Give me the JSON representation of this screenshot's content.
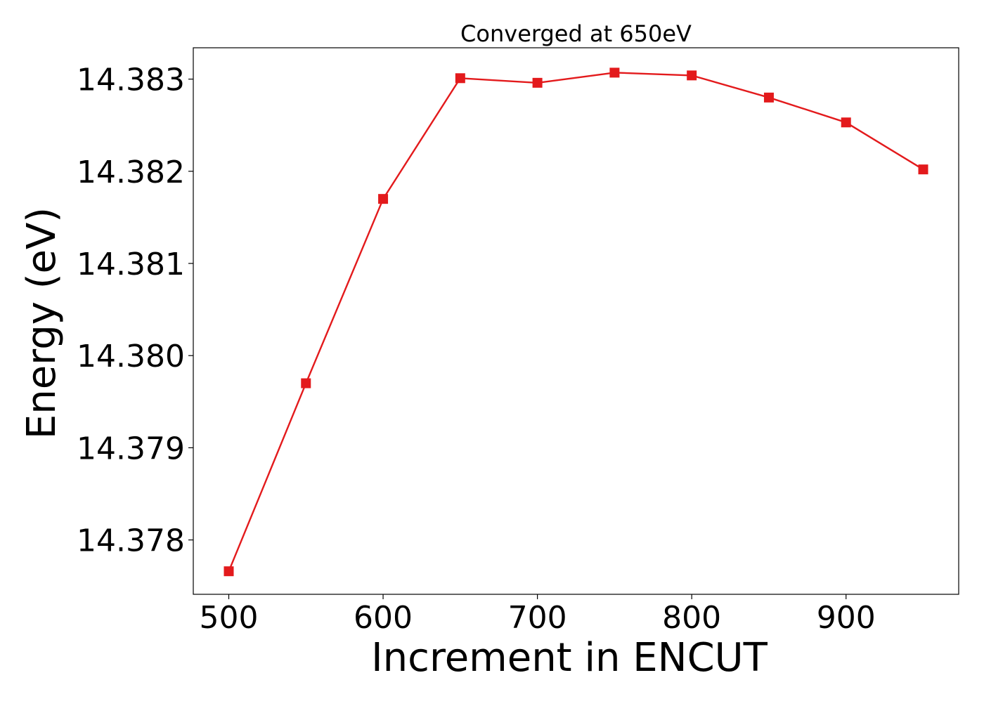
{
  "chart_data": {
    "type": "line",
    "title": "Converged at 650eV",
    "xlabel": "Increment in ENCUT",
    "ylabel": "Energy (eV)",
    "x": [
      500,
      550,
      600,
      650,
      700,
      750,
      800,
      850,
      900,
      950
    ],
    "series": [
      {
        "values": [
          14.37766,
          14.3797,
          14.3817,
          14.38301,
          14.38296,
          14.38307,
          14.38304,
          14.3828,
          14.38253,
          14.38202
        ],
        "color": "#e31a1c",
        "marker": "square"
      }
    ],
    "xlim": [
      477,
      973
    ],
    "ylim": [
      14.37741,
      14.38334
    ],
    "xticks": [
      500,
      600,
      700,
      800,
      900
    ],
    "xtick_labels": [
      "500",
      "600",
      "700",
      "800",
      "900"
    ],
    "yticks": [
      14.378,
      14.379,
      14.38,
      14.381,
      14.382,
      14.383
    ],
    "ytick_labels": [
      "14.378",
      "14.379",
      "14.380",
      "14.381",
      "14.382",
      "14.383"
    ],
    "grid": false,
    "legend": false
  }
}
